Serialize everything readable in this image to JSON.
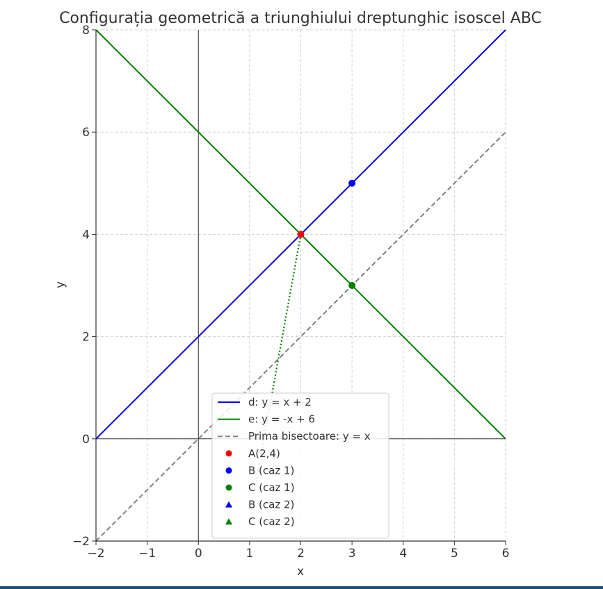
{
  "chart_data": {
    "type": "line",
    "title": "Configurația geometrică a triunghiului dreptunghic isoscel ABC",
    "xlabel": "x",
    "ylabel": "y",
    "xlim": [
      -2,
      6
    ],
    "ylim": [
      -2,
      8
    ],
    "xticks": [
      -2,
      -1,
      0,
      1,
      2,
      3,
      4,
      5,
      6
    ],
    "yticks": [
      -2,
      0,
      2,
      4,
      6,
      8
    ],
    "xtick_labels": [
      "−2",
      "−1",
      "0",
      "1",
      "2",
      "3",
      "4",
      "5",
      "6"
    ],
    "ytick_labels": [
      "−2",
      "0",
      "2",
      "4",
      "6",
      "8"
    ],
    "grid": true,
    "grid_style": "dashed",
    "legend_position": "lower-center",
    "series": [
      {
        "name": "d: y = x + 2",
        "kind": "line",
        "style": "solid",
        "color": "#0000ff",
        "x": [
          -2,
          6
        ],
        "y": [
          0,
          8
        ]
      },
      {
        "name": "e: y = -x + 6",
        "kind": "line",
        "style": "solid",
        "color": "#008000",
        "x": [
          -2,
          6
        ],
        "y": [
          8,
          0
        ]
      },
      {
        "name": "Prima bisectoare: y = x",
        "kind": "line",
        "style": "dashed",
        "color": "#808080",
        "x": [
          -2,
          6
        ],
        "y": [
          -2,
          6
        ]
      },
      {
        "name": "A(2,4)",
        "kind": "point",
        "marker": "circle",
        "color": "#ff0000",
        "x": [
          2
        ],
        "y": [
          4
        ]
      },
      {
        "name": "B (caz 1)",
        "kind": "point",
        "marker": "circle",
        "color": "#0000ff",
        "x": [
          3
        ],
        "y": [
          5
        ]
      },
      {
        "name": "C (caz 1)",
        "kind": "point",
        "marker": "circle",
        "color": "#008000",
        "x": [
          3
        ],
        "y": [
          3
        ]
      },
      {
        "name": "B (caz 2)",
        "kind": "point",
        "marker": "triangle",
        "color": "#0000ff",
        "x": [],
        "y": []
      },
      {
        "name": "C (caz 2)",
        "kind": "point",
        "marker": "triangle",
        "color": "#008000",
        "x": [],
        "y": []
      }
    ],
    "segments": [
      {
        "style": "dotted",
        "color": "#008000",
        "x": [
          2,
          1.1
        ],
        "y": [
          4,
          -1
        ]
      }
    ],
    "reference_lines": [
      {
        "axis": "x",
        "value": 0,
        "color": "#333333"
      },
      {
        "axis": "y",
        "value": 0,
        "color": "#333333"
      }
    ]
  }
}
